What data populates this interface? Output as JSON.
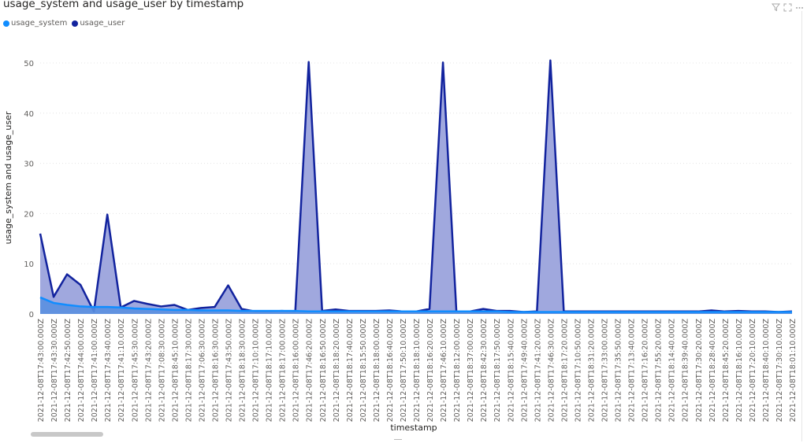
{
  "title": "usage_system and usage_user by timestamp",
  "header_icons": [
    "filter-icon",
    "focus-mode-icon",
    "more-options-icon"
  ],
  "legend": [
    {
      "label": "usage_system",
      "color": "#118DFF"
    },
    {
      "label": "usage_user",
      "color": "#12239E"
    }
  ],
  "chart_data": {
    "type": "area",
    "xlabel": "timestamp",
    "ylabel": "usage_system and usage_user",
    "ylim": [
      0,
      52
    ],
    "yticks": [
      0,
      10,
      20,
      30,
      40,
      50
    ],
    "grid": true,
    "legend_position": "top-left",
    "categories": [
      "2021-12-08T17:43:00.000Z",
      "2021-12-08T17:43:30.000Z",
      "2021-12-08T17:42:50.000Z",
      "2021-12-08T17:44:00.000Z",
      "2021-12-08T17:41:00.000Z",
      "2021-12-08T17:43:40.000Z",
      "2021-12-08T17:41:10.000Z",
      "2021-12-08T17:45:30.000Z",
      "2021-12-08T17:43:20.000Z",
      "2021-12-08T17:08:30.000Z",
      "2021-12-08T18:45:10.000Z",
      "2021-12-08T18:17:30.000Z",
      "2021-12-08T17:06:30.000Z",
      "2021-12-08T18:16:30.000Z",
      "2021-12-08T17:43:50.000Z",
      "2021-12-08T18:18:30.000Z",
      "2021-12-08T17:10:10.000Z",
      "2021-12-08T18:17:10.000Z",
      "2021-12-08T18:17:00.000Z",
      "2021-12-08T18:16:00.000Z",
      "2021-12-08T17:46:20.000Z",
      "2021-12-08T18:16:50.000Z",
      "2021-12-08T18:18:20.000Z",
      "2021-12-08T18:17:40.000Z",
      "2021-12-08T18:15:50.000Z",
      "2021-12-08T18:18:00.000Z",
      "2021-12-08T18:16:40.000Z",
      "2021-12-08T17:50:10.000Z",
      "2021-12-08T18:18:10.000Z",
      "2021-12-08T18:16:20.000Z",
      "2021-12-08T17:46:10.000Z",
      "2021-12-08T18:12:00.000Z",
      "2021-12-08T18:37:00.000Z",
      "2021-12-08T18:42:30.000Z",
      "2021-12-08T18:17:50.000Z",
      "2021-12-08T18:15:40.000Z",
      "2021-12-08T17:49:40.000Z",
      "2021-12-08T17:41:20.000Z",
      "2021-12-08T17:46:30.000Z",
      "2021-12-08T18:17:20.000Z",
      "2021-12-08T17:10:50.000Z",
      "2021-12-08T18:31:20.000Z",
      "2021-12-08T17:33:00.000Z",
      "2021-12-08T17:35:50.000Z",
      "2021-12-08T17:13:40.000Z",
      "2021-12-08T17:16:20.000Z",
      "2021-12-08T17:55:20.000Z",
      "2021-12-08T18:14:40.000Z",
      "2021-12-08T18:39:40.000Z",
      "2021-12-08T17:30:20.000Z",
      "2021-12-08T18:28:40.000Z",
      "2021-12-08T18:45:20.000Z",
      "2021-12-08T18:16:10.000Z",
      "2021-12-08T17:20:10.000Z",
      "2021-12-08T18:40:10.000Z",
      "2021-12-08T17:30:10.000Z",
      "2021-12-08T18:01:10.000Z"
    ],
    "series": [
      {
        "name": "usage_user",
        "color": "#12239E",
        "fill": "#a0a8de",
        "values": [
          16.0,
          3.4,
          7.9,
          5.8,
          0.5,
          19.8,
          1.3,
          2.6,
          2.0,
          1.5,
          1.8,
          0.8,
          1.2,
          1.4,
          5.7,
          1.0,
          0.5,
          0.5,
          0.6,
          0.5,
          50.2,
          0.6,
          0.9,
          0.6,
          0.6,
          0.6,
          0.7,
          0.5,
          0.5,
          1.0,
          50.1,
          0.5,
          0.5,
          1.0,
          0.6,
          0.6,
          0.4,
          0.5,
          50.5,
          0.5,
          0.5,
          0.5,
          0.5,
          0.5,
          0.5,
          0.5,
          0.5,
          0.5,
          0.5,
          0.5,
          0.7,
          0.5,
          0.6,
          0.5,
          0.5,
          0.4,
          0.5
        ]
      },
      {
        "name": "usage_system",
        "color": "#118DFF",
        "fill": "#5a8fe0",
        "values": [
          3.3,
          2.2,
          1.8,
          1.5,
          1.4,
          1.4,
          1.3,
          1.1,
          1.0,
          0.9,
          0.8,
          0.8,
          0.7,
          0.7,
          0.7,
          0.6,
          0.6,
          0.6,
          0.6,
          0.6,
          0.5,
          0.5,
          0.5,
          0.5,
          0.5,
          0.5,
          0.5,
          0.5,
          0.5,
          0.5,
          0.5,
          0.5,
          0.5,
          0.5,
          0.5,
          0.4,
          0.4,
          0.4,
          0.4,
          0.4,
          0.4,
          0.4,
          0.4,
          0.4,
          0.4,
          0.4,
          0.4,
          0.4,
          0.4,
          0.4,
          0.4,
          0.4,
          0.4,
          0.4,
          0.4,
          0.4,
          0.4
        ]
      }
    ]
  }
}
